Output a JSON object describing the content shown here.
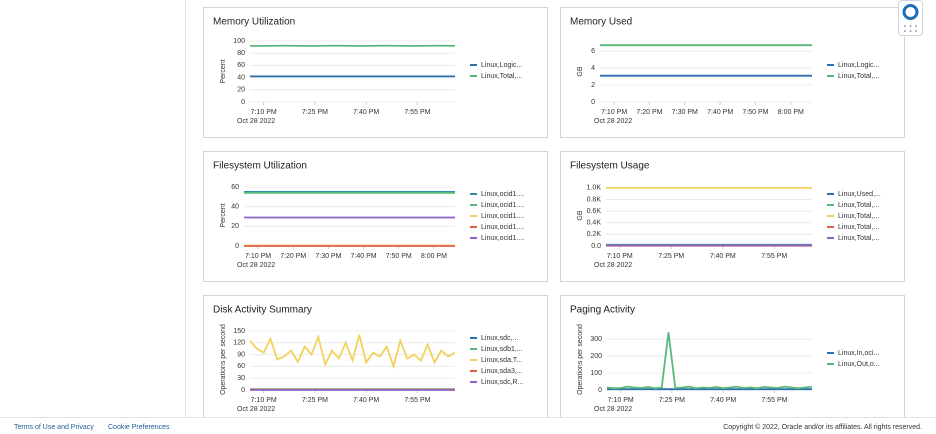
{
  "chart_data": [
    {
      "type": "line",
      "title": "Memory Utilization",
      "y_label": "Percent",
      "date_label": "Oct 28 2022",
      "x": [
        1146,
        1151,
        1156,
        1161,
        1166,
        1171,
        1176,
        1181,
        1186,
        1191,
        1196,
        1201,
        1206
      ],
      "xlim": [
        1146,
        1206
      ],
      "xticks": [
        {
          "value": 1150,
          "label": "7:10 PM"
        },
        {
          "value": 1165,
          "label": "7:25 PM"
        },
        {
          "value": 1180,
          "label": "7:40 PM"
        },
        {
          "value": 1195,
          "label": "7:55 PM"
        }
      ],
      "ylim": [
        0,
        100
      ],
      "yticks": [
        0,
        20,
        40,
        60,
        80,
        100
      ],
      "grid": true,
      "series": [
        {
          "name": "Linux,Logic...",
          "color": "#2c6fad",
          "values": [
            42,
            42,
            42,
            42,
            42,
            42,
            42,
            42,
            42,
            42,
            42,
            42,
            42
          ]
        },
        {
          "name": "Linux,Total,...",
          "color": "#5ab97a",
          "values": [
            92,
            92,
            92.5,
            92,
            92,
            92.5,
            92,
            92,
            92.5,
            92,
            92,
            92.5,
            92
          ]
        }
      ]
    },
    {
      "type": "line",
      "title": "Memory Used",
      "y_label": "GB",
      "date_label": "Oct 28 2022",
      "x": [
        1146,
        1151,
        1156,
        1161,
        1166,
        1171,
        1176,
        1181,
        1186,
        1191,
        1196,
        1201,
        1206
      ],
      "xlim": [
        1146,
        1206
      ],
      "xticks": [
        {
          "value": 1150,
          "label": "7:10 PM"
        },
        {
          "value": 1160,
          "label": "7:20 PM"
        },
        {
          "value": 1170,
          "label": "7:30 PM"
        },
        {
          "value": 1180,
          "label": "7:40 PM"
        },
        {
          "value": 1190,
          "label": "7:50 PM"
        },
        {
          "value": 1200,
          "label": "8:00 PM"
        }
      ],
      "ylim": [
        0,
        7.2
      ],
      "yticks": [
        0,
        2,
        4,
        6
      ],
      "grid": true,
      "series": [
        {
          "name": "Linux,Logic...",
          "color": "#2c6fad",
          "values": [
            3.1,
            3.1,
            3.1,
            3.1,
            3.1,
            3.1,
            3.1,
            3.1,
            3.1,
            3.1,
            3.1,
            3.1,
            3.1
          ]
        },
        {
          "name": "Linux,Total,...",
          "color": "#5ab97a",
          "values": [
            6.7,
            6.7,
            6.7,
            6.7,
            6.7,
            6.7,
            6.7,
            6.7,
            6.7,
            6.7,
            6.7,
            6.7,
            6.7
          ]
        }
      ]
    },
    {
      "type": "line",
      "title": "Filesystem Utilization",
      "y_label": "Percent",
      "date_label": "Oct 28 2022",
      "x": [
        1146,
        1151,
        1156,
        1161,
        1166,
        1171,
        1176,
        1181,
        1186,
        1191,
        1196,
        1201,
        1206
      ],
      "xlim": [
        1146,
        1206
      ],
      "xticks": [
        {
          "value": 1150,
          "label": "7:10 PM"
        },
        {
          "value": 1160,
          "label": "7:20 PM"
        },
        {
          "value": 1170,
          "label": "7:30 PM"
        },
        {
          "value": 1180,
          "label": "7:40 PM"
        },
        {
          "value": 1190,
          "label": "7:50 PM"
        },
        {
          "value": 1200,
          "label": "8:00 PM"
        }
      ],
      "ylim": [
        0,
        62
      ],
      "yticks": [
        0,
        20,
        40,
        60
      ],
      "grid": true,
      "series": [
        {
          "name": "Linux,ocid1....",
          "color": "#2a8fa8",
          "values": [
            55,
            55,
            55,
            55,
            55,
            55,
            55,
            55,
            55,
            55,
            55,
            55,
            55
          ]
        },
        {
          "name": "Linux,ocid1....",
          "color": "#5ab97a",
          "values": [
            54,
            54,
            54,
            54,
            54,
            54,
            54,
            54,
            54,
            54,
            54,
            54,
            54
          ]
        },
        {
          "name": "Linux,ocid1....",
          "color": "#f2d25c",
          "values": [
            0.5,
            0.5,
            0.5,
            0.5,
            0.5,
            0.5,
            0.5,
            0.5,
            0.5,
            0.5,
            0.5,
            0.5,
            0.5
          ]
        },
        {
          "name": "Linux,ocid1....",
          "color": "#e0604a",
          "values": [
            0,
            0,
            0,
            0,
            0,
            0,
            0,
            0,
            0,
            0,
            0,
            0,
            0
          ]
        },
        {
          "name": "Linux,ocid1....",
          "color": "#8e63c8",
          "values": [
            29,
            29,
            29,
            29,
            29,
            29,
            29,
            29,
            29,
            29,
            29,
            29,
            29
          ]
        }
      ]
    },
    {
      "type": "line",
      "title": "Filesystem Usage",
      "y_label": "GB",
      "date_label": "Oct 28 2022",
      "x": [
        1146,
        1151,
        1156,
        1161,
        1166,
        1171,
        1176,
        1181,
        1186,
        1191,
        1196,
        1201,
        1206
      ],
      "xlim": [
        1146,
        1206
      ],
      "xticks": [
        {
          "value": 1150,
          "label": "7:10 PM"
        },
        {
          "value": 1165,
          "label": "7:25 PM"
        },
        {
          "value": 1180,
          "label": "7:40 PM"
        },
        {
          "value": 1195,
          "label": "7:55 PM"
        }
      ],
      "ylim": [
        0,
        1050
      ],
      "yticks": [
        {
          "value": 0,
          "label": "0.0"
        },
        {
          "value": 200,
          "label": "0.2K"
        },
        {
          "value": 400,
          "label": "0.4K"
        },
        {
          "value": 600,
          "label": "0.6K"
        },
        {
          "value": 800,
          "label": "0.8K"
        },
        {
          "value": 1000,
          "label": "1.0K"
        }
      ],
      "grid": true,
      "series": [
        {
          "name": "Linux,Used,...",
          "color": "#2c6fad",
          "values": [
            20,
            20,
            20,
            20,
            20,
            20,
            20,
            20,
            20,
            20,
            20,
            20,
            20
          ]
        },
        {
          "name": "Linux,Total,...",
          "color": "#5ab97a",
          "values": [
            15,
            15,
            15,
            15,
            15,
            15,
            15,
            15,
            15,
            15,
            15,
            15,
            15
          ]
        },
        {
          "name": "Linux,Total,...",
          "color": "#f2d25c",
          "values": [
            1000,
            1000,
            1000,
            1000,
            1000,
            1000,
            1000,
            1000,
            1000,
            1000,
            1000,
            1000,
            1000
          ]
        },
        {
          "name": "Linux,Total,...",
          "color": "#e0604a",
          "values": [
            5,
            5,
            5,
            5,
            5,
            5,
            5,
            5,
            5,
            5,
            5,
            5,
            5
          ]
        },
        {
          "name": "Linux,Total,...",
          "color": "#8e63c8",
          "values": [
            10,
            10,
            10,
            10,
            10,
            10,
            10,
            10,
            10,
            10,
            10,
            10,
            10
          ]
        }
      ]
    },
    {
      "type": "line",
      "title": "Disk Activity Summary",
      "y_label": "Operations per second",
      "date_label": "Oct 28 2022",
      "x": [
        1146,
        1148,
        1150,
        1152,
        1154,
        1156,
        1158,
        1160,
        1162,
        1164,
        1166,
        1168,
        1170,
        1172,
        1174,
        1176,
        1178,
        1180,
        1182,
        1184,
        1186,
        1188,
        1190,
        1192,
        1194,
        1196,
        1198,
        1200,
        1202,
        1204,
        1206
      ],
      "xlim": [
        1146,
        1206
      ],
      "xticks": [
        {
          "value": 1150,
          "label": "7:10 PM"
        },
        {
          "value": 1165,
          "label": "7:25 PM"
        },
        {
          "value": 1180,
          "label": "7:40 PM"
        },
        {
          "value": 1195,
          "label": "7:55 PM"
        }
      ],
      "ylim": [
        0,
        155
      ],
      "yticks": [
        0,
        30,
        60,
        90,
        120,
        150
      ],
      "grid": true,
      "series": [
        {
          "name": "Linux,sdc,...",
          "color": "#2c6fad",
          "values": [
            1,
            1,
            1,
            1,
            1,
            1,
            1,
            1,
            1,
            1,
            1,
            1,
            1,
            1,
            1,
            1,
            1,
            1,
            1,
            1,
            1,
            1,
            1,
            1,
            1,
            1,
            1,
            1,
            1,
            1,
            1
          ]
        },
        {
          "name": "Linux,sdb1,...",
          "color": "#5ab97a",
          "values": [
            2,
            2,
            2,
            2,
            2,
            2,
            2,
            2,
            2,
            2,
            2,
            2,
            2,
            2,
            2,
            2,
            2,
            2,
            2,
            2,
            2,
            2,
            2,
            2,
            2,
            2,
            2,
            2,
            2,
            2,
            2
          ]
        },
        {
          "name": "Linux,sda,T...",
          "color": "#f2d25c",
          "values": [
            125,
            105,
            95,
            130,
            78,
            85,
            100,
            72,
            110,
            90,
            135,
            65,
            100,
            80,
            120,
            75,
            140,
            70,
            95,
            85,
            110,
            60,
            125,
            80,
            90,
            75,
            115,
            70,
            100,
            85,
            95
          ]
        },
        {
          "name": "Linux,sda3,...",
          "color": "#e0604a",
          "values": [
            1,
            1,
            1,
            1,
            1,
            1,
            1,
            1,
            1,
            1,
            1,
            1,
            1,
            1,
            1,
            1,
            1,
            1,
            1,
            1,
            1,
            1,
            1,
            1,
            1,
            1,
            1,
            1,
            1,
            1,
            1
          ]
        },
        {
          "name": "Linux,sdc,R...",
          "color": "#8e63c8",
          "values": [
            0,
            0,
            0,
            0,
            0,
            0,
            0,
            0,
            0,
            0,
            0,
            0,
            0,
            0,
            0,
            0,
            0,
            0,
            0,
            0,
            0,
            0,
            0,
            0,
            0,
            0,
            0,
            0,
            0,
            0,
            0
          ]
        }
      ]
    },
    {
      "type": "line",
      "title": "Paging Activity",
      "y_label": "Operations per second",
      "date_label": "Oct 28 2022",
      "x": [
        1146,
        1148,
        1150,
        1152,
        1154,
        1156,
        1158,
        1160,
        1162,
        1164,
        1166,
        1168,
        1170,
        1172,
        1174,
        1176,
        1178,
        1180,
        1182,
        1184,
        1186,
        1188,
        1190,
        1192,
        1194,
        1196,
        1198,
        1200,
        1202,
        1204,
        1206
      ],
      "xlim": [
        1146,
        1206
      ],
      "xticks": [
        {
          "value": 1150,
          "label": "7:10 PM"
        },
        {
          "value": 1165,
          "label": "7:25 PM"
        },
        {
          "value": 1180,
          "label": "7:40 PM"
        },
        {
          "value": 1195,
          "label": "7:55 PM"
        }
      ],
      "ylim": [
        0,
        360
      ],
      "yticks": [
        0,
        100,
        200,
        300
      ],
      "grid": true,
      "series": [
        {
          "name": "Linux,In,oci...",
          "color": "#2c6fad",
          "values": [
            5,
            5,
            5,
            5,
            5,
            5,
            5,
            5,
            5,
            5,
            5,
            5,
            5,
            5,
            5,
            5,
            5,
            5,
            5,
            5,
            5,
            5,
            5,
            5,
            5,
            5,
            5,
            5,
            5,
            5,
            5
          ]
        },
        {
          "name": "Linux,Out,o...",
          "color": "#5ab97a",
          "values": [
            15,
            10,
            12,
            20,
            15,
            12,
            18,
            10,
            15,
            340,
            12,
            15,
            20,
            10,
            15,
            12,
            18,
            10,
            15,
            20,
            12,
            15,
            10,
            18,
            15,
            12,
            20,
            15,
            10,
            15,
            20
          ]
        }
      ]
    }
  ],
  "footer": {
    "links": [
      "Terms of Use and Privacy",
      "Cookie Preferences"
    ],
    "copyright": "Copyright © 2022, Oracle and/or its affiliates. All rights reserved."
  }
}
